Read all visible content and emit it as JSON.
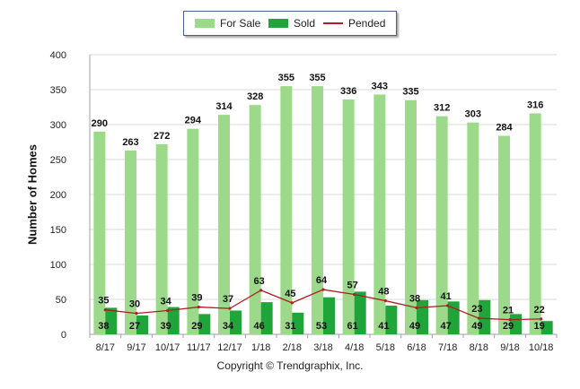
{
  "chart_data": {
    "type": "bar",
    "categories": [
      "8/17",
      "9/17",
      "10/17",
      "11/17",
      "12/17",
      "1/18",
      "2/18",
      "3/18",
      "4/18",
      "5/18",
      "6/18",
      "7/18",
      "8/18",
      "9/18",
      "10/18"
    ],
    "series": [
      {
        "name": "For Sale",
        "type": "bar",
        "color": "#9cd98a",
        "values": [
          290,
          263,
          272,
          294,
          314,
          328,
          355,
          355,
          336,
          343,
          335,
          312,
          303,
          284,
          316
        ]
      },
      {
        "name": "Sold",
        "type": "bar",
        "color": "#1fa53a",
        "values": [
          38,
          27,
          39,
          29,
          34,
          46,
          31,
          53,
          61,
          41,
          49,
          47,
          49,
          29,
          19
        ]
      },
      {
        "name": "Pended",
        "type": "line",
        "color": "#b01e1e",
        "values": [
          35,
          30,
          34,
          39,
          37,
          63,
          45,
          64,
          57,
          48,
          38,
          41,
          23,
          21,
          22
        ]
      }
    ],
    "title": "",
    "xlabel": "",
    "ylabel": "Number of Homes",
    "ylim": [
      0,
      400
    ],
    "yticks": [
      0,
      50,
      100,
      150,
      200,
      250,
      300,
      350,
      400
    ],
    "grid": true,
    "legend_position": "top-center"
  },
  "footer": {
    "copyright": "Copyright © Trendgraphix, Inc."
  },
  "colors": {
    "axis": "#a0a0a0",
    "grid": "#d9d9d9"
  }
}
